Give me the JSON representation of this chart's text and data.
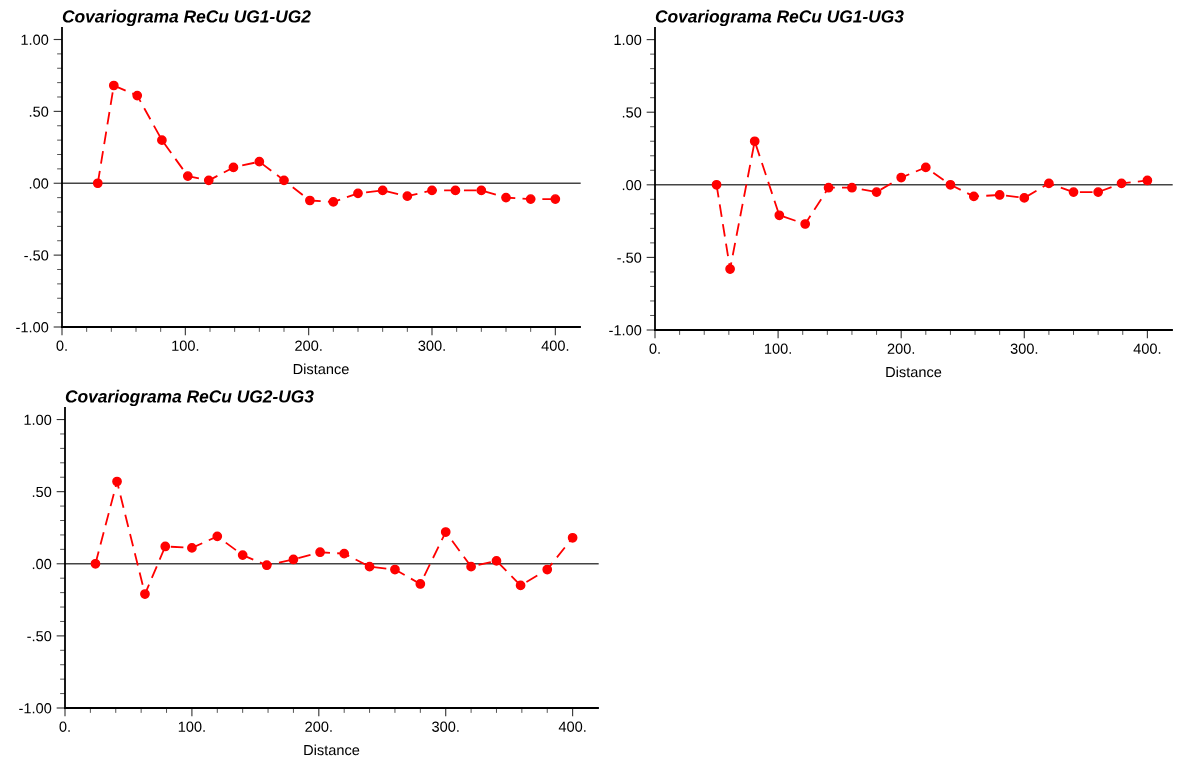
{
  "chart_data": [
    {
      "type": "line",
      "title": "Covariograma ReCu UG1-UG2",
      "xlabel": "Distance",
      "marker": "circle",
      "line_style": "dashed",
      "grid": false,
      "xlim": [
        0,
        420
      ],
      "ylim": [
        -1.0,
        1.08
      ],
      "xticks": [
        {
          "value": 0,
          "label": "0."
        },
        {
          "value": 20,
          "label": null
        },
        {
          "value": 40,
          "label": null
        },
        {
          "value": 60,
          "label": null
        },
        {
          "value": 80,
          "label": null
        },
        {
          "value": 100,
          "label": "100."
        },
        {
          "value": 120,
          "label": null
        },
        {
          "value": 140,
          "label": null
        },
        {
          "value": 160,
          "label": null
        },
        {
          "value": 180,
          "label": null
        },
        {
          "value": 200,
          "label": "200."
        },
        {
          "value": 220,
          "label": null
        },
        {
          "value": 240,
          "label": null
        },
        {
          "value": 260,
          "label": null
        },
        {
          "value": 280,
          "label": null
        },
        {
          "value": 300,
          "label": "300."
        },
        {
          "value": 320,
          "label": null
        },
        {
          "value": 340,
          "label": null
        },
        {
          "value": 360,
          "label": null
        },
        {
          "value": 380,
          "label": null
        },
        {
          "value": 400,
          "label": "400."
        }
      ],
      "yticks": [
        {
          "value": -1.0,
          "label": "-1.00"
        },
        {
          "value": -0.9,
          "label": null
        },
        {
          "value": -0.8,
          "label": null
        },
        {
          "value": -0.7,
          "label": null
        },
        {
          "value": -0.6,
          "label": null
        },
        {
          "value": -0.5,
          "label": "-.50"
        },
        {
          "value": -0.4,
          "label": null
        },
        {
          "value": -0.3,
          "label": null
        },
        {
          "value": -0.2,
          "label": null
        },
        {
          "value": -0.1,
          "label": null
        },
        {
          "value": 0.0,
          "label": ".00"
        },
        {
          "value": 0.1,
          "label": null
        },
        {
          "value": 0.2,
          "label": null
        },
        {
          "value": 0.3,
          "label": null
        },
        {
          "value": 0.4,
          "label": null
        },
        {
          "value": 0.5,
          "label": ".50"
        },
        {
          "value": 0.6,
          "label": null
        },
        {
          "value": 0.7,
          "label": null
        },
        {
          "value": 0.8,
          "label": null
        },
        {
          "value": 0.9,
          "label": null
        },
        {
          "value": 1.0,
          "label": "1.00"
        }
      ],
      "ref_lines": [
        {
          "axis": "y",
          "value": 0,
          "color": "#444444"
        }
      ],
      "series": [
        {
          "color": "#ff0000",
          "x": [
            29,
            42,
            61,
            81,
            102,
            119,
            139,
            160,
            180,
            201,
            220,
            240,
            260,
            280,
            300,
            319,
            340,
            360,
            380,
            400
          ],
          "values": [
            0.0,
            0.68,
            0.61,
            0.3,
            0.05,
            0.02,
            0.11,
            0.15,
            0.02,
            -0.12,
            -0.13,
            -0.07,
            -0.05,
            -0.09,
            -0.05,
            -0.05,
            -0.05,
            -0.1,
            -0.11,
            -0.11
          ]
        }
      ]
    },
    {
      "type": "line",
      "title": "Covariograma ReCu UG1-UG3",
      "xlabel": "Distance",
      "marker": "circle",
      "line_style": "dashed",
      "grid": false,
      "xlim": [
        0,
        420
      ],
      "ylim": [
        -1.0,
        1.08
      ],
      "xticks": [
        {
          "value": 0,
          "label": "0."
        },
        {
          "value": 20,
          "label": null
        },
        {
          "value": 40,
          "label": null
        },
        {
          "value": 60,
          "label": null
        },
        {
          "value": 80,
          "label": null
        },
        {
          "value": 100,
          "label": "100."
        },
        {
          "value": 120,
          "label": null
        },
        {
          "value": 140,
          "label": null
        },
        {
          "value": 160,
          "label": null
        },
        {
          "value": 180,
          "label": null
        },
        {
          "value": 200,
          "label": "200."
        },
        {
          "value": 220,
          "label": null
        },
        {
          "value": 240,
          "label": null
        },
        {
          "value": 260,
          "label": null
        },
        {
          "value": 280,
          "label": null
        },
        {
          "value": 300,
          "label": "300."
        },
        {
          "value": 320,
          "label": null
        },
        {
          "value": 340,
          "label": null
        },
        {
          "value": 360,
          "label": null
        },
        {
          "value": 380,
          "label": null
        },
        {
          "value": 400,
          "label": "400."
        }
      ],
      "yticks": [
        {
          "value": -1.0,
          "label": "-1.00"
        },
        {
          "value": -0.9,
          "label": null
        },
        {
          "value": -0.8,
          "label": null
        },
        {
          "value": -0.7,
          "label": null
        },
        {
          "value": -0.6,
          "label": null
        },
        {
          "value": -0.5,
          "label": "-.50"
        },
        {
          "value": -0.4,
          "label": null
        },
        {
          "value": -0.3,
          "label": null
        },
        {
          "value": -0.2,
          "label": null
        },
        {
          "value": -0.1,
          "label": null
        },
        {
          "value": 0.0,
          "label": ".00"
        },
        {
          "value": 0.1,
          "label": null
        },
        {
          "value": 0.2,
          "label": null
        },
        {
          "value": 0.3,
          "label": null
        },
        {
          "value": 0.4,
          "label": null
        },
        {
          "value": 0.5,
          "label": ".50"
        },
        {
          "value": 0.6,
          "label": null
        },
        {
          "value": 0.7,
          "label": null
        },
        {
          "value": 0.8,
          "label": null
        },
        {
          "value": 0.9,
          "label": null
        },
        {
          "value": 1.0,
          "label": "1.00"
        }
      ],
      "ref_lines": [
        {
          "axis": "y",
          "value": 0,
          "color": "#444444"
        }
      ],
      "series": [
        {
          "color": "#ff0000",
          "x": [
            50,
            61,
            81,
            101,
            122,
            141,
            160,
            180,
            200,
            220,
            240,
            259,
            280,
            300,
            320,
            340,
            360,
            379,
            400
          ],
          "values": [
            0.0,
            -0.58,
            0.3,
            -0.21,
            -0.27,
            -0.02,
            -0.02,
            -0.05,
            0.05,
            0.12,
            0.0,
            -0.08,
            -0.07,
            -0.09,
            0.01,
            -0.05,
            -0.05,
            0.01,
            0.03
          ]
        }
      ]
    },
    {
      "type": "line",
      "title": "Covariograma ReCu UG2-UG3",
      "xlabel": "Distance",
      "marker": "circle",
      "line_style": "dashed",
      "grid": false,
      "xlim": [
        0,
        420
      ],
      "ylim": [
        -1.0,
        1.08
      ],
      "xticks": [
        {
          "value": 0,
          "label": "0."
        },
        {
          "value": 20,
          "label": null
        },
        {
          "value": 40,
          "label": null
        },
        {
          "value": 60,
          "label": null
        },
        {
          "value": 80,
          "label": null
        },
        {
          "value": 100,
          "label": "100."
        },
        {
          "value": 120,
          "label": null
        },
        {
          "value": 140,
          "label": null
        },
        {
          "value": 160,
          "label": null
        },
        {
          "value": 180,
          "label": null
        },
        {
          "value": 200,
          "label": "200."
        },
        {
          "value": 220,
          "label": null
        },
        {
          "value": 240,
          "label": null
        },
        {
          "value": 260,
          "label": null
        },
        {
          "value": 280,
          "label": null
        },
        {
          "value": 300,
          "label": "300."
        },
        {
          "value": 320,
          "label": null
        },
        {
          "value": 340,
          "label": null
        },
        {
          "value": 360,
          "label": null
        },
        {
          "value": 380,
          "label": null
        },
        {
          "value": 400,
          "label": "400."
        }
      ],
      "yticks": [
        {
          "value": -1.0,
          "label": "-1.00"
        },
        {
          "value": -0.9,
          "label": null
        },
        {
          "value": -0.8,
          "label": null
        },
        {
          "value": -0.7,
          "label": null
        },
        {
          "value": -0.6,
          "label": null
        },
        {
          "value": -0.5,
          "label": "-.50"
        },
        {
          "value": -0.4,
          "label": null
        },
        {
          "value": -0.3,
          "label": null
        },
        {
          "value": -0.2,
          "label": null
        },
        {
          "value": -0.1,
          "label": null
        },
        {
          "value": 0.0,
          "label": ".00"
        },
        {
          "value": 0.1,
          "label": null
        },
        {
          "value": 0.2,
          "label": null
        },
        {
          "value": 0.3,
          "label": null
        },
        {
          "value": 0.4,
          "label": null
        },
        {
          "value": 0.5,
          "label": ".50"
        },
        {
          "value": 0.6,
          "label": null
        },
        {
          "value": 0.7,
          "label": null
        },
        {
          "value": 0.8,
          "label": null
        },
        {
          "value": 0.9,
          "label": null
        },
        {
          "value": 1.0,
          "label": "1.00"
        }
      ],
      "ref_lines": [
        {
          "axis": "y",
          "value": 0,
          "color": "#444444"
        }
      ],
      "series": [
        {
          "color": "#ff0000",
          "x": [
            24,
            41,
            63,
            79,
            100,
            120,
            140,
            159,
            180,
            201,
            220,
            240,
            260,
            280,
            300,
            320,
            340,
            359,
            380,
            400
          ],
          "values": [
            0.0,
            0.57,
            -0.21,
            0.12,
            0.11,
            0.19,
            0.06,
            -0.01,
            0.03,
            0.08,
            0.07,
            -0.02,
            -0.04,
            -0.14,
            0.22,
            -0.02,
            0.02,
            -0.15,
            -0.04,
            0.18
          ]
        }
      ]
    }
  ]
}
